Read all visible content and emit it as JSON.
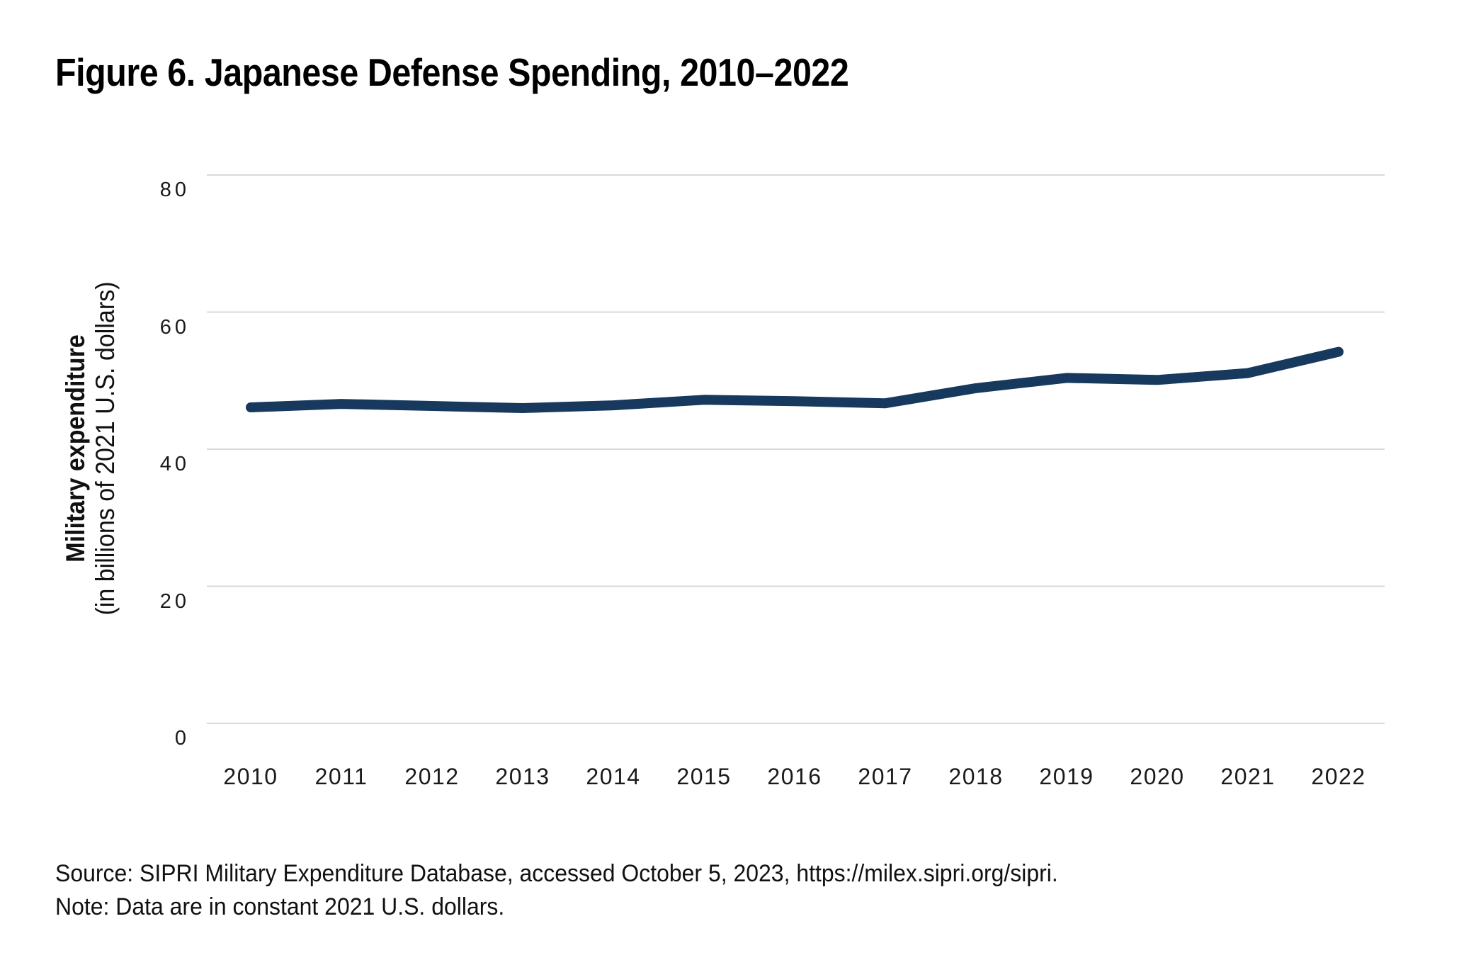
{
  "figure": {
    "title": "Figure 6. Japanese Defense Spending, 2010–2022",
    "source_line": "Source: SIPRI Military Expenditure Database, accessed October 5, 2023, https://milex.sipri.org/sipri.",
    "note_line": "Note: Data are in constant 2021 U.S. dollars."
  },
  "chart_data": {
    "type": "line",
    "title": "Figure 6. Japanese Defense Spending, 2010–2022",
    "categories": [
      "2010",
      "2011",
      "2012",
      "2013",
      "2014",
      "2015",
      "2016",
      "2017",
      "2018",
      "2019",
      "2020",
      "2021",
      "2022"
    ],
    "series": [
      {
        "name": "Japanese military expenditure",
        "values": [
          46.1,
          46.6,
          46.3,
          46.0,
          46.4,
          47.2,
          47.0,
          46.7,
          48.9,
          50.4,
          50.1,
          51.1,
          54.2
        ]
      }
    ],
    "xlabel": "",
    "ylabel_bold": "Military expenditure",
    "ylabel_sub": "(in billions of 2021 U.S. dollars)",
    "yticks": [
      0,
      20,
      40,
      60,
      80
    ],
    "ylim": [
      0,
      80
    ],
    "grid": "horizontal-only",
    "legend": "none",
    "line_color": "#16395D",
    "grid_color": "#D9D9D9",
    "tick_text_color": "#1a1a1a"
  }
}
